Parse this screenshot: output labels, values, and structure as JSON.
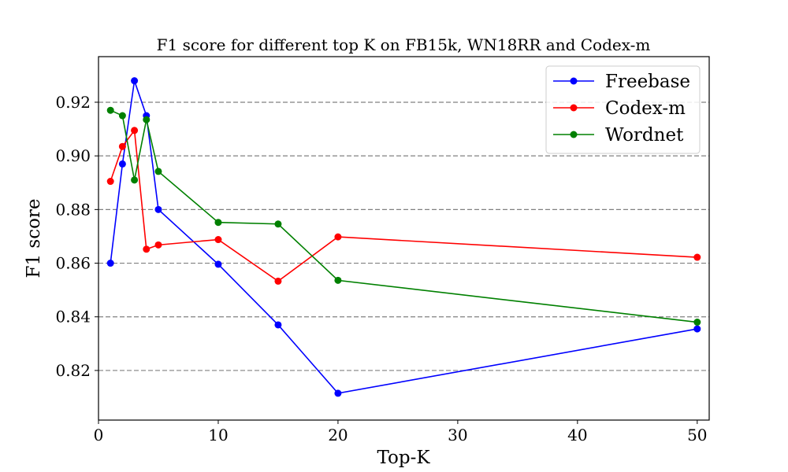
{
  "chart_data": {
    "type": "line",
    "title": "F1 score for different top K on FB15k, WN18RR and Codex-m",
    "xlabel": "Top-K",
    "ylabel": "F1 score",
    "xlim": [
      0,
      51
    ],
    "ylim": [
      0.8015,
      0.937
    ],
    "xticks": [
      0,
      10,
      20,
      30,
      40,
      50
    ],
    "yticks": [
      0.82,
      0.84,
      0.86,
      0.88,
      0.9,
      0.92
    ],
    "xtick_labels": [
      "0",
      "10",
      "20",
      "30",
      "40",
      "50"
    ],
    "ytick_labels": [
      "0.82",
      "0.84",
      "0.86",
      "0.88",
      "0.90",
      "0.92"
    ],
    "grid": "horizontal-dashed",
    "legend_position": "top-right",
    "series": [
      {
        "name": "Freebase",
        "color": "#0000ff",
        "x": [
          1,
          2,
          3,
          4,
          5,
          10,
          15,
          20,
          50
        ],
        "y": [
          0.86,
          0.897,
          0.928,
          0.915,
          0.88,
          0.8596,
          0.837,
          0.8115,
          0.8355
        ]
      },
      {
        "name": "Codex-m",
        "color": "#ff0000",
        "x": [
          1,
          2,
          3,
          4,
          5,
          10,
          15,
          20,
          50
        ],
        "y": [
          0.8905,
          0.9035,
          0.9095,
          0.8652,
          0.8668,
          0.8688,
          0.8533,
          0.8698,
          0.8622
        ]
      },
      {
        "name": "Wordnet",
        "color": "#008000",
        "x": [
          1,
          2,
          3,
          4,
          5,
          10,
          15,
          20,
          50
        ],
        "y": [
          0.917,
          0.915,
          0.891,
          0.9135,
          0.8942,
          0.8752,
          0.8746,
          0.8536,
          0.838
        ]
      }
    ]
  }
}
